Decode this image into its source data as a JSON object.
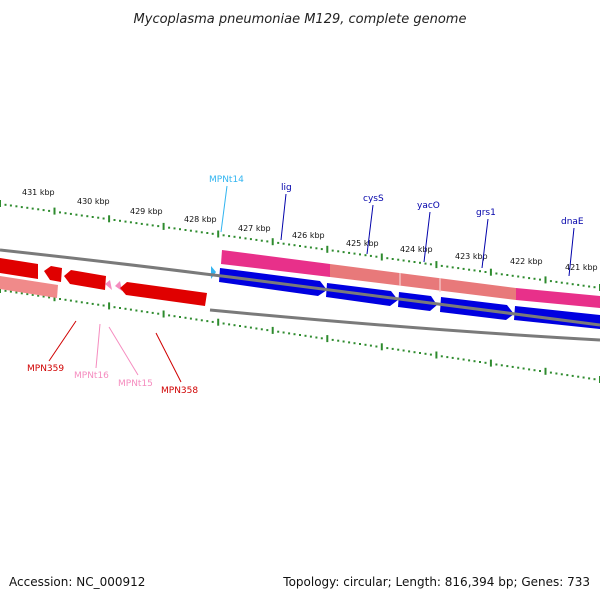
{
  "title": "Mycoplasma pneumoniae M129, complete genome",
  "footer": {
    "accession": "Accession: NC_000912",
    "summary": "Topology: circular; Length: 816,394 bp; Genes: 733"
  },
  "colors": {
    "backbone": "#7a7a7a",
    "tick": "#2e8b2e",
    "forward_cds": "#0000e0",
    "forward_trna": "#33b5f0",
    "reverse_cds": "#e00000",
    "reverse_trna": "#f58cbf",
    "operon_track": "#e8308a",
    "operon_light": "#f08a8a"
  },
  "ruler": {
    "labels": [
      "431 kbp",
      "430 kbp",
      "429 kbp",
      "428 kbp",
      "427 kbp",
      "426 kbp",
      "425 kbp",
      "424 kbp",
      "423 kbp",
      "422 kbp",
      "421 kbp"
    ]
  },
  "genes": {
    "forward": [
      {
        "name": "MPNt14",
        "type": "tRNA"
      },
      {
        "name": "lig",
        "type": "CDS"
      },
      {
        "name": "cysS",
        "type": "CDS"
      },
      {
        "name": "yacO",
        "type": "CDS"
      },
      {
        "name": "grs1",
        "type": "CDS"
      },
      {
        "name": "dnaE",
        "type": "CDS"
      }
    ],
    "reverse": [
      {
        "name": "MPN359",
        "type": "CDS"
      },
      {
        "name": "MPNt16",
        "type": "tRNA"
      },
      {
        "name": "MPNt15",
        "type": "tRNA"
      },
      {
        "name": "MPN358",
        "type": "CDS"
      }
    ]
  }
}
